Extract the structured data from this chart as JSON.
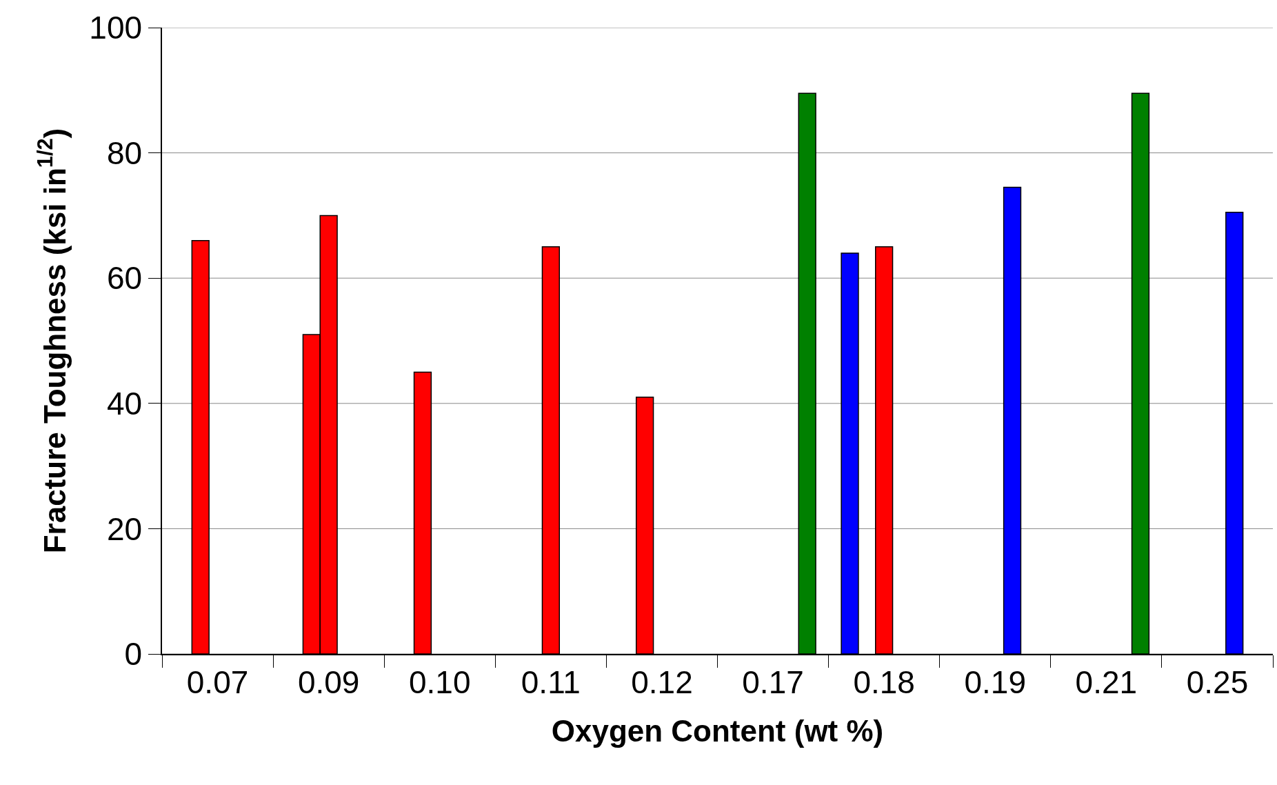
{
  "chart_data": {
    "type": "bar",
    "xlabel": "Oxygen Content (wt %)",
    "ylabel": "Fracture Toughness (ksi in$^{1/2}$)",
    "categories": [
      "0.07",
      "0.09",
      "0.10",
      "0.11",
      "0.12",
      "0.17",
      "0.18",
      "0.19",
      "0.21",
      "0.25"
    ],
    "series": [
      {
        "color": "#0000ff",
        "values": [
          null,
          null,
          null,
          null,
          null,
          null,
          64,
          null,
          null,
          null
        ]
      },
      {
        "color": "#ff0000",
        "values": [
          66,
          51,
          45,
          null,
          41,
          null,
          null,
          null,
          null,
          null
        ]
      },
      {
        "color": "#ff0000",
        "values": [
          null,
          70,
          null,
          65,
          null,
          null,
          65,
          null,
          null,
          null
        ]
      },
      {
        "color": "#0000ff",
        "values": [
          null,
          null,
          null,
          null,
          null,
          null,
          null,
          74.5,
          null,
          70.5
        ]
      },
      {
        "color": "#008000",
        "values": [
          null,
          null,
          null,
          null,
          null,
          89.5,
          null,
          null,
          89.5,
          null
        ]
      }
    ],
    "ylim": [
      0,
      100
    ],
    "yticks": [
      0,
      20,
      40,
      60,
      80,
      100
    ],
    "grid": "y"
  }
}
